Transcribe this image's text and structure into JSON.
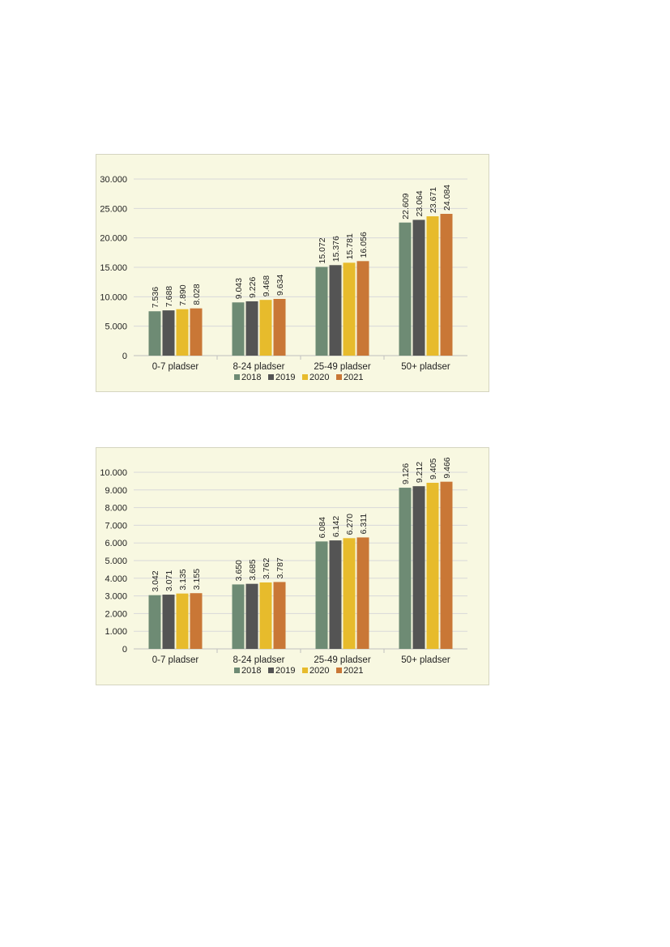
{
  "chart_data": [
    {
      "type": "bar",
      "categories": [
        "0-7 pladser",
        "8-24 pladser",
        "25-49 pladser",
        "50+ pladser"
      ],
      "series": [
        {
          "name": "2018",
          "values": [
            7536,
            9043,
            15072,
            22609
          ],
          "labels": [
            "7.536",
            "9.043",
            "15.072",
            "22.609"
          ]
        },
        {
          "name": "2019",
          "values": [
            7688,
            9226,
            15376,
            23064
          ],
          "labels": [
            "7.688",
            "9.226",
            "15.376",
            "23.064"
          ]
        },
        {
          "name": "2020",
          "values": [
            7890,
            9468,
            15781,
            23671
          ],
          "labels": [
            "7.890",
            "9.468",
            "15.781",
            "23.671"
          ]
        },
        {
          "name": "2021",
          "values": [
            8028,
            9634,
            16056,
            24084
          ],
          "labels": [
            "8.028",
            "9.634",
            "16.056",
            "24.084"
          ]
        }
      ],
      "y_ticks": [
        0,
        5000,
        10000,
        15000,
        20000,
        25000,
        30000
      ],
      "y_tick_labels": [
        "0",
        "5.000",
        "10.000",
        "15.000",
        "20.000",
        "25.000",
        "30.000"
      ],
      "ylim": [
        0,
        30000
      ],
      "grid": true,
      "legend": "bottom"
    },
    {
      "type": "bar",
      "categories": [
        "0-7 pladser",
        "8-24 pladser",
        "25-49 pladser",
        "50+ pladser"
      ],
      "series": [
        {
          "name": "2018",
          "values": [
            3042,
            3650,
            6084,
            9126
          ],
          "labels": [
            "3.042",
            "3.650",
            "6.084",
            "9.126"
          ]
        },
        {
          "name": "2019",
          "values": [
            3071,
            3685,
            6142,
            9212
          ],
          "labels": [
            "3.071",
            "3.685",
            "6.142",
            "9.212"
          ]
        },
        {
          "name": "2020",
          "values": [
            3135,
            3762,
            6270,
            9405
          ],
          "labels": [
            "3.135",
            "3.762",
            "6.270",
            "9.405"
          ]
        },
        {
          "name": "2021",
          "values": [
            3155,
            3787,
            6311,
            9466
          ],
          "labels": [
            "3.155",
            "3.787",
            "6.311",
            "9.466"
          ]
        }
      ],
      "y_ticks": [
        0,
        1000,
        2000,
        3000,
        4000,
        5000,
        6000,
        7000,
        8000,
        9000,
        10000
      ],
      "y_tick_labels": [
        "0",
        "1.000",
        "2.000",
        "3.000",
        "4.000",
        "5.000",
        "6.000",
        "7.000",
        "8.000",
        "9.000",
        "10.000"
      ],
      "ylim": [
        0,
        10000
      ],
      "grid": true,
      "legend": "bottom"
    }
  ],
  "colors": {
    "2018": "#6e8b74",
    "2019": "#545454",
    "2020": "#e7bb2c",
    "2021": "#c97736",
    "grid": "#d9d9d9",
    "axis": "#bfbfbf"
  }
}
